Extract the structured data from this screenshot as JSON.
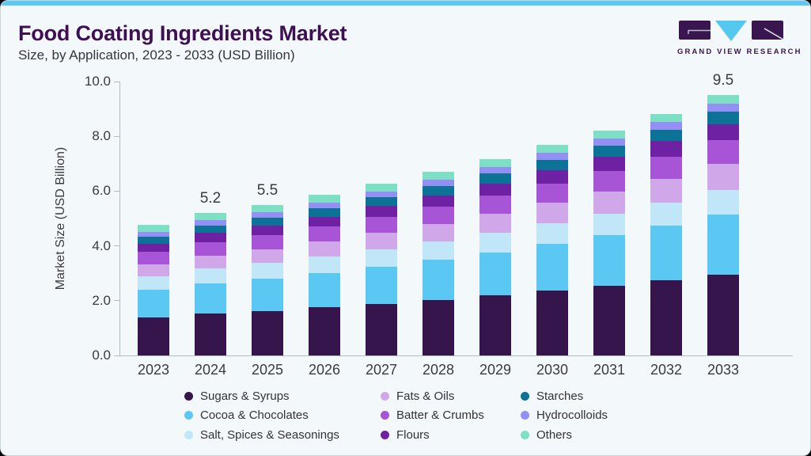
{
  "header": {
    "title": "Food Coating Ingredients Market",
    "subtitle": "Size, by Application, 2023 - 2033 (USD Billion)",
    "logo_text": "GRAND VIEW RESEARCH"
  },
  "chart_data": {
    "type": "bar",
    "stacked": true,
    "title": "Food Coating Ingredients Market Size, by Application, 2023 - 2033 (USD Billion)",
    "ylabel": "Market Size (USD Billion)",
    "ylim": [
      0,
      10
    ],
    "yticks": [
      0,
      2,
      4,
      6,
      8,
      10
    ],
    "ytick_labels": [
      "0.0",
      "2.0",
      "4.0",
      "6.0",
      "8.0",
      "10.0"
    ],
    "grid": false,
    "legend_position": "bottom",
    "categories": [
      "2023",
      "2024",
      "2025",
      "2026",
      "2027",
      "2028",
      "2029",
      "2030",
      "2031",
      "2032",
      "2033"
    ],
    "bar_labels": {
      "2024": "5.2",
      "2025": "5.5",
      "2033": "9.5"
    },
    "series": [
      {
        "name": "Sugars & Syrups",
        "color": "#36154d",
        "values": [
          1.4,
          1.54,
          1.63,
          1.75,
          1.89,
          2.03,
          2.19,
          2.36,
          2.54,
          2.74,
          2.95
        ]
      },
      {
        "name": "Cocoa & Chocolates",
        "color": "#5bc8f3",
        "values": [
          1.0,
          1.1,
          1.17,
          1.26,
          1.36,
          1.47,
          1.58,
          1.71,
          1.84,
          1.99,
          2.2
        ]
      },
      {
        "name": "Salt, Spices & Seasonings",
        "color": "#c0e6f8",
        "values": [
          0.5,
          0.54,
          0.58,
          0.6,
          0.63,
          0.67,
          0.71,
          0.75,
          0.8,
          0.85,
          0.9
        ]
      },
      {
        "name": "Fats & Oils",
        "color": "#d0a8e9",
        "values": [
          0.43,
          0.47,
          0.5,
          0.55,
          0.59,
          0.64,
          0.69,
          0.75,
          0.81,
          0.88,
          0.95
        ]
      },
      {
        "name": "Batter & Crumbs",
        "color": "#a754d6",
        "values": [
          0.45,
          0.49,
          0.51,
          0.54,
          0.58,
          0.62,
          0.66,
          0.7,
          0.75,
          0.8,
          0.85
        ]
      },
      {
        "name": "Flours",
        "color": "#6f21a4",
        "values": [
          0.3,
          0.33,
          0.35,
          0.37,
          0.4,
          0.42,
          0.45,
          0.49,
          0.52,
          0.56,
          0.6
        ]
      },
      {
        "name": "Starches",
        "color": "#0d7396",
        "values": [
          0.26,
          0.28,
          0.29,
          0.31,
          0.32,
          0.34,
          0.36,
          0.38,
          0.4,
          0.43,
          0.45
        ]
      },
      {
        "name": "Hydrocolloids",
        "color": "#938ff5",
        "values": [
          0.18,
          0.19,
          0.2,
          0.21,
          0.22,
          0.23,
          0.24,
          0.26,
          0.27,
          0.28,
          0.3
        ]
      },
      {
        "name": "Others",
        "color": "#7de0c4",
        "values": [
          0.25,
          0.26,
          0.27,
          0.27,
          0.27,
          0.28,
          0.28,
          0.29,
          0.29,
          0.29,
          0.3
        ]
      }
    ],
    "legend_columns": [
      [
        0,
        1,
        2
      ],
      [
        3,
        4,
        5
      ],
      [
        6,
        7,
        8
      ]
    ]
  },
  "colors": {
    "accent_strip": "#5bc9f3",
    "card_background": "#f3f8fb",
    "card_border": "#c9d4db",
    "title_text": "#3e1053",
    "body_text": "#35353d",
    "axis_line": "#b4bcc2",
    "logo_purple": "#3a1650",
    "logo_cyan": "#55c8f0"
  }
}
